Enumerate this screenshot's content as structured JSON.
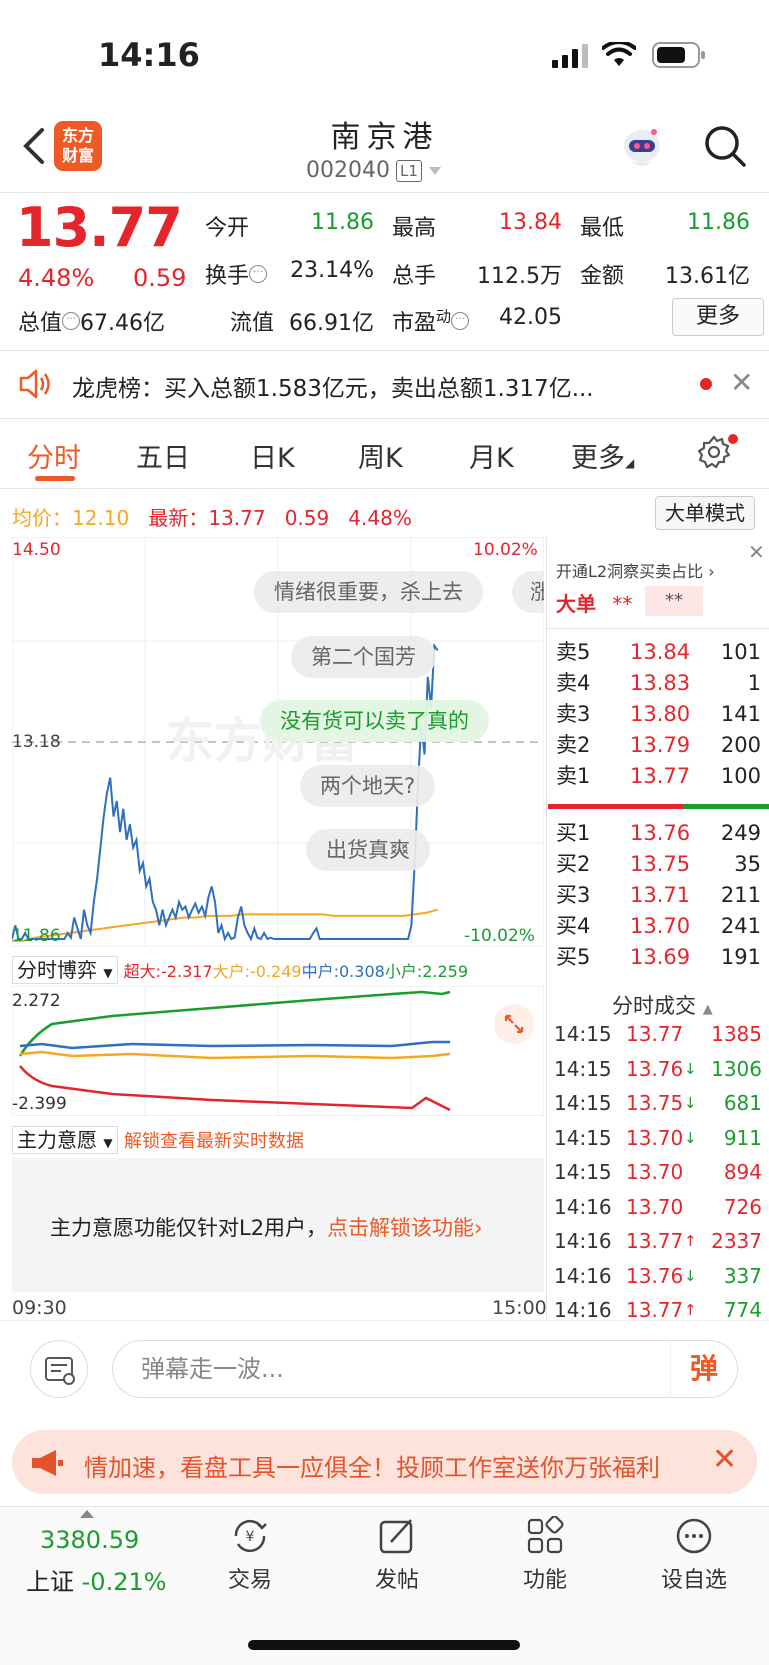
{
  "status_bar": {
    "time": "14:16"
  },
  "header": {
    "logo_line1": "东方",
    "logo_line2": "财富",
    "stock_name": "南京港",
    "stock_code": "002040",
    "level_badge": "L1"
  },
  "quote": {
    "price": "13.77",
    "change_pct": "4.48%",
    "change_val": "0.59",
    "open_label": "今开",
    "open": "11.86",
    "high_label": "最高",
    "high": "13.84",
    "low_label": "最低",
    "low": "11.86",
    "turnover_label": "换手",
    "turnover": "23.14%",
    "volume_label": "总手",
    "volume": "112.5万",
    "amount_label": "金额",
    "amount": "13.61亿",
    "total_mv_label": "总值",
    "total_mv": "67.46亿",
    "float_mv_label": "流值",
    "float_mv": "66.91亿",
    "pe_label": "市盈",
    "pe_sup": "动",
    "pe": "42.05",
    "more_label": "更多"
  },
  "notice": {
    "text": "龙虎榜：买入总额1.583亿元，卖出总额1.317亿..."
  },
  "tabs": [
    "分时",
    "五日",
    "日K",
    "周K",
    "月K",
    "更多"
  ],
  "chart_header": {
    "avg_label": "均价：",
    "avg": "12.10",
    "latest_label": "最新：",
    "latest": "13.77",
    "latest_chg": "0.59",
    "latest_pct": "4.48%",
    "big_order_mode": "大单模式"
  },
  "chart_data": {
    "type": "line",
    "y_max_label": "14.50",
    "y_mid_label": "13.18",
    "y_min_label": "11.86",
    "pct_max_label": "10.02%",
    "pct_min_label": "-10.02%",
    "ylim": [
      11.86,
      14.5
    ],
    "x_start": "09:30",
    "x_end": "15:00",
    "series": [
      {
        "values": [
          11.86,
          12.0,
          11.9,
          11.86,
          11.95,
          11.86,
          11.86,
          11.88,
          11.86,
          11.86,
          11.9,
          11.86,
          11.86,
          11.86,
          11.86,
          11.86,
          11.86,
          11.95,
          11.92,
          12.05,
          11.98,
          11.9,
          12.1,
          12.0,
          11.95,
          12.15,
          12.3,
          12.5,
          12.7,
          12.85,
          12.95,
          12.7,
          12.8,
          12.6,
          12.75,
          12.55,
          12.65,
          12.5,
          12.55,
          12.35,
          12.4,
          12.25,
          12.3,
          12.15,
          12.1,
          12.0,
          12.1,
          12.0,
          12.05,
          12.1,
          12.05,
          12.15,
          12.1,
          12.12,
          12.05,
          12.1,
          12.14,
          12.08,
          12.12,
          12.06,
          12.18,
          12.25,
          12.15,
          11.95,
          12.0,
          11.9,
          11.95,
          11.88,
          11.92,
          12.05,
          12.12,
          12.0,
          11.95,
          11.9,
          11.98,
          11.92,
          11.9,
          11.95,
          11.88,
          11.92,
          11.9,
          11.86,
          11.88,
          11.86,
          11.9,
          11.86,
          11.86,
          11.86,
          11.9,
          11.88,
          11.86,
          11.86,
          11.95,
          11.98,
          11.9,
          11.88,
          11.86,
          11.9,
          11.86,
          11.88,
          11.86,
          11.86,
          11.86,
          11.86,
          11.86,
          11.86,
          11.86,
          11.86,
          11.86,
          11.86,
          11.86,
          11.86,
          11.86,
          11.86,
          11.86,
          11.86,
          11.86,
          11.9,
          11.86,
          11.86,
          11.86,
          11.86,
          12.0,
          12.4,
          12.9,
          13.3,
          13.1,
          13.6,
          13.4,
          13.8,
          13.77
        ]
      },
      {
        "values": [
          11.9,
          11.9,
          11.92,
          11.93,
          11.94,
          11.95,
          11.96,
          11.97,
          11.98,
          11.99,
          12.0,
          12.01,
          12.02,
          12.03,
          12.04,
          12.05,
          12.05,
          12.06,
          12.06,
          12.06,
          12.07,
          12.07,
          12.07,
          12.07,
          12.07,
          12.07,
          12.07,
          12.07,
          12.06,
          12.06,
          12.06,
          12.06,
          12.06,
          12.06,
          12.06,
          12.07,
          12.08,
          12.1
        ]
      }
    ]
  },
  "bojue": {
    "title": "分时博弈",
    "super_large": "超大:-2.317",
    "large": "大户:-0.249",
    "medium": "中户:0.308",
    "small": "小户:2.259",
    "y_max": "2.272",
    "y_min": "-2.399"
  },
  "zhuli": {
    "title": "主力意愿",
    "unlock_hint": "解锁查看最新实时数据",
    "l2_text": "主力意愿功能仅针对L2用户，",
    "l2_link": "点击解锁该功能"
  },
  "danmu_bullets": [
    "情绪很重要，杀上去",
    "涨",
    "第二个国芳",
    "没有货可以卖了真的",
    "两个地天?",
    "出货真爽"
  ],
  "watermark": "东方财富",
  "order_book": {
    "header": "开通L2洞察买卖占比",
    "big_order_label": "大单",
    "big_order_v1": "**",
    "big_order_v2": "**",
    "asks": [
      {
        "label": "卖5",
        "price": "13.84",
        "vol": "101"
      },
      {
        "label": "卖4",
        "price": "13.83",
        "vol": "1"
      },
      {
        "label": "卖3",
        "price": "13.80",
        "vol": "141"
      },
      {
        "label": "卖2",
        "price": "13.79",
        "vol": "200"
      },
      {
        "label": "卖1",
        "price": "13.77",
        "vol": "100"
      }
    ],
    "bids": [
      {
        "label": "买1",
        "price": "13.76",
        "vol": "249"
      },
      {
        "label": "买2",
        "price": "13.75",
        "vol": "35"
      },
      {
        "label": "买3",
        "price": "13.71",
        "vol": "211"
      },
      {
        "label": "买4",
        "price": "13.70",
        "vol": "241"
      },
      {
        "label": "买5",
        "price": "13.69",
        "vol": "191"
      }
    ],
    "tick_title": "分时成交",
    "ticks": [
      {
        "time": "14:15",
        "price": "13.77",
        "arrow": "",
        "vol": "1385",
        "color": "red"
      },
      {
        "time": "14:15",
        "price": "13.76",
        "arrow": "↓",
        "vol": "1306",
        "color": "green"
      },
      {
        "time": "14:15",
        "price": "13.75",
        "arrow": "↓",
        "vol": "681",
        "color": "green"
      },
      {
        "time": "14:15",
        "price": "13.70",
        "arrow": "↓",
        "vol": "911",
        "color": "green"
      },
      {
        "time": "14:15",
        "price": "13.70",
        "arrow": "",
        "vol": "894",
        "color": "red"
      },
      {
        "time": "14:16",
        "price": "13.70",
        "arrow": "",
        "vol": "726",
        "color": "red"
      },
      {
        "time": "14:16",
        "price": "13.77",
        "arrow": "↑",
        "vol": "2337",
        "color": "red"
      },
      {
        "time": "14:16",
        "price": "13.76",
        "arrow": "↓",
        "vol": "337",
        "color": "green"
      },
      {
        "time": "14:16",
        "price": "13.77",
        "arrow": "↑",
        "vol": "774",
        "color": "green"
      }
    ]
  },
  "danmu": {
    "placeholder": "弹幕走一波...",
    "send_label": "弹"
  },
  "promo": {
    "text": "情加速，看盘工具一应俱全！投顾工作室送你万张福利"
  },
  "bottom_nav": {
    "index_value": "3380.59",
    "index_name": "上证",
    "index_pct": "-0.21%",
    "items": [
      {
        "label": "交易",
        "icon": "yuan-exchange-icon"
      },
      {
        "label": "发帖",
        "icon": "edit-icon"
      },
      {
        "label": "功能",
        "icon": "grid-icon"
      },
      {
        "label": "设自选",
        "icon": "more-circle-icon"
      }
    ]
  },
  "colors": {
    "up": "#e4262c",
    "down": "#1a9c2e",
    "avg": "#f5a623",
    "accent": "#ee5a24",
    "line": "#2f6fc0"
  }
}
